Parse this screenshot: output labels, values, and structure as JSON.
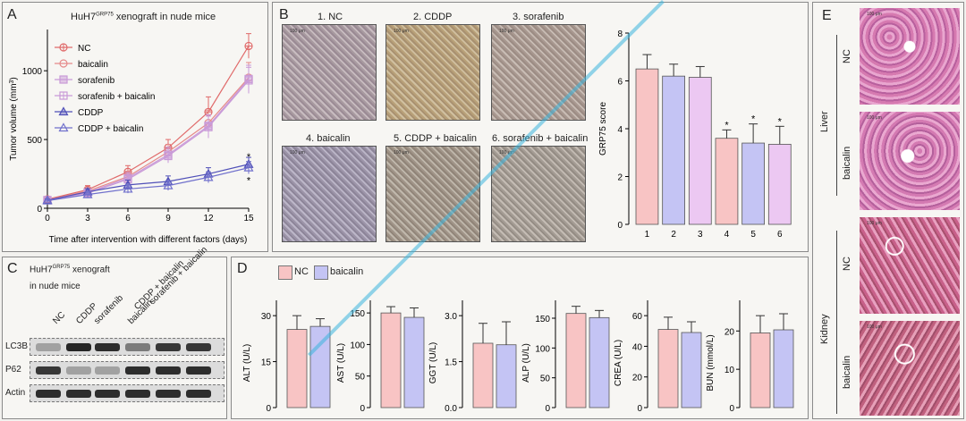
{
  "panelA": {
    "letter": "A",
    "title_main": "HuH7",
    "title_sup": "GRP75",
    "title_rest": " xenograft in nude mice",
    "chart_data": {
      "type": "line",
      "title": "HuH7GRP75 xenograft in nude mice",
      "xlabel": "Time after intervention with different factors (days)",
      "ylabel": "Tumor volume (mm3)",
      "ylabel_text": "Tumor volume (mm",
      "ylabel_sup": "3",
      "ylabel_close": ")",
      "x": [
        0,
        3,
        6,
        9,
        12,
        15
      ],
      "xticks": [
        "0",
        "3",
        "6",
        "9",
        "12",
        "15"
      ],
      "yticks": [
        "0",
        "500",
        "1000"
      ],
      "ylim": [
        0,
        1300
      ],
      "xlim": [
        0,
        15
      ],
      "series": [
        {
          "name": "NC",
          "color": "#e06a6a",
          "marker": "circle-cross",
          "values": [
            65,
            135,
            265,
            440,
            700,
            1180
          ],
          "err": [
            15,
            30,
            45,
            60,
            110,
            90
          ]
        },
        {
          "name": "baicalin",
          "color": "#e58a8a",
          "marker": "circle",
          "values": [
            60,
            125,
            230,
            410,
            620,
            950
          ],
          "err": [
            12,
            25,
            40,
            55,
            90,
            110
          ]
        },
        {
          "name": "sorafenib",
          "color": "#c99ad8",
          "marker": "square-filled",
          "values": [
            60,
            115,
            220,
            390,
            600,
            940
          ],
          "err": [
            12,
            25,
            40,
            55,
            80,
            100
          ]
        },
        {
          "name": "sorafenib + baicalin",
          "color": "#c99ad8",
          "marker": "square-cross",
          "values": [
            58,
            110,
            210,
            380,
            590,
            930
          ],
          "err": [
            12,
            22,
            35,
            50,
            80,
            95
          ]
        },
        {
          "name": "CDDP",
          "color": "#5050b8",
          "marker": "triangle",
          "values": [
            58,
            120,
            170,
            195,
            250,
            320
          ],
          "err": [
            10,
            22,
            35,
            40,
            45,
            50
          ]
        },
        {
          "name": "CDDP + baicalin",
          "color": "#7070cc",
          "marker": "triangle-open",
          "values": [
            55,
            100,
            140,
            165,
            225,
            295
          ],
          "err": [
            10,
            20,
            30,
            35,
            40,
            45
          ]
        }
      ],
      "annotations": [
        "*",
        "*"
      ]
    }
  },
  "panelB": {
    "letter": "B",
    "images": [
      {
        "label": "1. NC"
      },
      {
        "label": "2. CDDP"
      },
      {
        "label": "3. sorafenib"
      },
      {
        "label": "4. baicalin"
      },
      {
        "label": "5. CDDP + baicalin"
      },
      {
        "label": "6. sorafenib + baicalin"
      }
    ],
    "scale_text": "100 μm",
    "chart_data": {
      "type": "bar",
      "ylabel": "GRP75 score",
      "categories": [
        "1",
        "2",
        "3",
        "4",
        "5",
        "6"
      ],
      "values": [
        6.5,
        6.2,
        6.15,
        3.6,
        3.4,
        3.35
      ],
      "err": [
        0.6,
        0.5,
        0.45,
        0.35,
        0.8,
        0.75
      ],
      "colors": [
        "#f8c4c4",
        "#c4c4f4",
        "#ecc8f2",
        "#f8c4c4",
        "#c4c4f4",
        "#ecc8f2"
      ],
      "significance": [
        "",
        "",
        "",
        "*",
        "*",
        "*"
      ],
      "yticks": [
        "0",
        "2",
        "4",
        "6",
        "8"
      ],
      "ylim": [
        0,
        8
      ]
    }
  },
  "panelC": {
    "letter": "C",
    "title_main": "HuH7",
    "title_sup": "GRP75",
    "title_rest": " xenograft",
    "title_line2": "in nude mice",
    "columns": [
      "NC",
      "CDDP",
      "sorafenib",
      "baicalin",
      "CDDP + baicalin",
      "sorafenib + baicalin"
    ],
    "rows": [
      {
        "name": "LC3B",
        "intensity": [
          0.3,
          0.95,
          0.9,
          0.5,
          0.85,
          0.85
        ]
      },
      {
        "name": "P62",
        "intensity": [
          0.85,
          0.3,
          0.3,
          0.9,
          0.9,
          0.9
        ]
      },
      {
        "name": "Actin",
        "intensity": [
          0.9,
          0.9,
          0.9,
          0.9,
          0.9,
          0.9
        ]
      }
    ]
  },
  "panelD": {
    "letter": "D",
    "legend": [
      {
        "name": "NC",
        "color": "#f8c4c4"
      },
      {
        "name": "baicalin",
        "color": "#c4c4f4"
      }
    ],
    "chart_data": [
      {
        "type": "bar",
        "ylabel": "ALT (U/L)",
        "categories": [
          "NC",
          "baicalin"
        ],
        "values": [
          25.5,
          26.5
        ],
        "err": [
          4.5,
          2.5
        ],
        "yticks": [
          "0",
          "15",
          "30"
        ],
        "ylim": [
          0,
          35
        ]
      },
      {
        "type": "bar",
        "ylabel": "AST (U/L)",
        "categories": [
          "NC",
          "baicalin"
        ],
        "values": [
          150,
          143
        ],
        "err": [
          10,
          15
        ],
        "yticks": [
          "0",
          "50",
          "100",
          "150"
        ],
        "ylim": [
          0,
          170
        ]
      },
      {
        "type": "bar",
        "ylabel": "GGT (U/L)",
        "categories": [
          "NC",
          "baicalin"
        ],
        "values": [
          2.1,
          2.05
        ],
        "err": [
          0.65,
          0.75
        ],
        "yticks": [
          "0.0",
          "1.5",
          "3.0"
        ],
        "ylim": [
          0,
          3.5
        ]
      },
      {
        "type": "bar",
        "ylabel": "ALP (U/L)",
        "categories": [
          "NC",
          "baicalin"
        ],
        "values": [
          158,
          151
        ],
        "err": [
          12,
          12
        ],
        "yticks": [
          "0",
          "50",
          "100",
          "150"
        ],
        "ylim": [
          0,
          180
        ]
      },
      {
        "type": "bar",
        "ylabel": "CREA (U/L)",
        "categories": [
          "NC",
          "baicalin"
        ],
        "values": [
          51,
          49
        ],
        "err": [
          8,
          7
        ],
        "yticks": [
          "0",
          "20",
          "40",
          "60"
        ],
        "ylim": [
          0,
          70
        ]
      },
      {
        "type": "bar",
        "ylabel": "BUN (mmol/L)",
        "categories": [
          "NC",
          "baicalin"
        ],
        "values": [
          19.5,
          20.3
        ],
        "err": [
          4.5,
          4.2
        ],
        "yticks": [
          "0",
          "10",
          "20"
        ],
        "ylim": [
          0,
          28
        ]
      }
    ]
  },
  "panelE": {
    "letter": "E",
    "groups": [
      {
        "name": "Liver",
        "images": [
          {
            "label": "NC"
          },
          {
            "label": "baicalin"
          }
        ]
      },
      {
        "name": "Kidney",
        "images": [
          {
            "label": "NC"
          },
          {
            "label": "baicalin"
          }
        ]
      }
    ],
    "scale_text": "100 μm"
  }
}
